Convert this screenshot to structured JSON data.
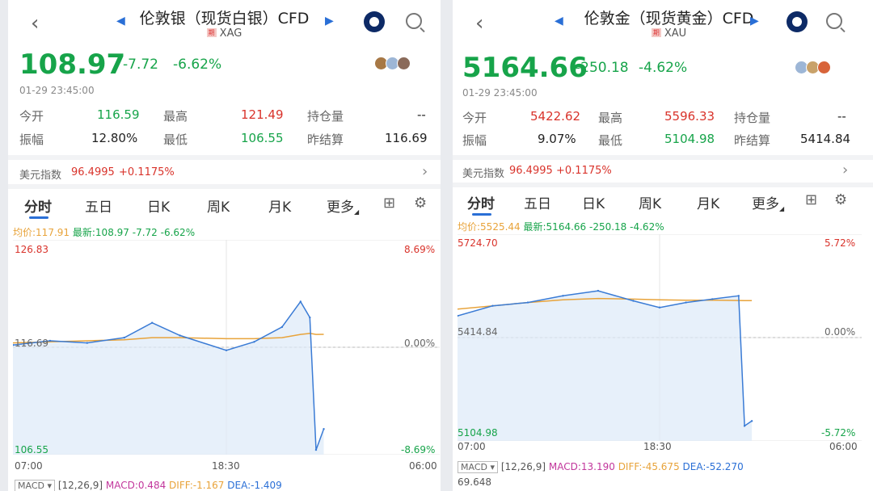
{
  "panels": [
    {
      "title": "伦敦银（现货白银）CFD",
      "badge": "期",
      "symbol": "XAG",
      "price": "108.97",
      "change": "-7.72",
      "change_pct": "-6.62%",
      "datetime": "01-29 23:45:00",
      "stats": {
        "open_label": "今开",
        "open": "116.59",
        "high_label": "最高",
        "high": "121.49",
        "oi_label": "持仓量",
        "oi": "--",
        "amp_label": "振幅",
        "amp": "12.80%",
        "low_label": "最低",
        "low": "106.55",
        "settle_label": "昨结算",
        "settle": "116.69"
      },
      "dxy_label": "美元指数",
      "dxy_value": "96.4995",
      "dxy_change": "+0.1175%",
      "tabs": [
        "分时",
        "五日",
        "日K",
        "周K",
        "月K",
        "更多"
      ],
      "legend": {
        "avg": "均价:117.91",
        "latest": "最新:108.97",
        "chg": "-7.72",
        "pct": "-6.62%"
      },
      "axis": {
        "top": "126.83",
        "mid": "116.69",
        "bottom": "106.55",
        "pct_top": "8.69%",
        "pct_mid": "0.00%",
        "pct_bottom": "-8.69%",
        "t_start": "07:00",
        "t_mid": "18:30",
        "t_end": "06:00"
      },
      "macd": {
        "label": "MACD",
        "params": "[12,26,9]",
        "macd": "MACD:0.484",
        "diff": "DIFF:-1.167",
        "dea": "DEA:-1.409"
      }
    },
    {
      "title": "伦敦金（现货黄金）CFD",
      "badge": "期",
      "symbol": "XAU",
      "price": "5164.66",
      "change": "-250.18",
      "change_pct": "-4.62%",
      "datetime": "01-29 23:45:00",
      "stats": {
        "open_label": "今开",
        "open": "5422.62",
        "high_label": "最高",
        "high": "5596.33",
        "oi_label": "持仓量",
        "oi": "--",
        "amp_label": "振幅",
        "amp": "9.07%",
        "low_label": "最低",
        "low": "5104.98",
        "settle_label": "昨结算",
        "settle": "5414.84"
      },
      "dxy_label": "美元指数",
      "dxy_value": "96.4995",
      "dxy_change": "+0.1175%",
      "tabs": [
        "分时",
        "五日",
        "日K",
        "周K",
        "月K",
        "更多"
      ],
      "legend": {
        "avg": "均价:5525.44",
        "latest": "最新:5164.66",
        "chg": "-250.18",
        "pct": "-4.62%"
      },
      "axis": {
        "top": "5724.70",
        "mid": "5414.84",
        "bottom": "5104.98",
        "pct_top": "5.72%",
        "pct_mid": "0.00%",
        "pct_bottom": "-5.72%",
        "t_start": "07:00",
        "t_mid": "18:30",
        "t_end": "06:00"
      },
      "macd": {
        "label": "MACD",
        "params": "[12,26,9]",
        "macd": "MACD:13.190",
        "diff": "DIFF:-45.675",
        "dea": "DEA:-52.270",
        "extra": "69.648"
      }
    }
  ],
  "colors": {
    "up": "#d9332b",
    "down": "#17a44a",
    "avg_line": "#e8a33a",
    "accent": "#2a6fd6",
    "price_line": "#3a7bd5",
    "fill": "#dde9f8"
  },
  "icons": [
    "back-icon",
    "prev-arrow-icon",
    "next-arrow-icon",
    "app-logo-icon",
    "search-icon",
    "chevron-right-icon",
    "grid-icon",
    "settings-icon"
  ],
  "chart_data": [
    {
      "type": "line",
      "symbol": "XAG",
      "x": [
        "07:00",
        "09:00",
        "11:00",
        "13:00",
        "14:30",
        "16:00",
        "18:30",
        "20:00",
        "21:30",
        "22:30",
        "23:00",
        "23:20",
        "23:45"
      ],
      "series": [
        {
          "values": [
            116.9,
            117.3,
            117.1,
            117.6,
            119.0,
            117.8,
            116.4,
            117.2,
            118.6,
            121.0,
            119.5,
            107.0,
            108.97
          ]
        },
        {
          "values": [
            117.1,
            117.2,
            117.3,
            117.4,
            117.6,
            117.6,
            117.5,
            117.5,
            117.6,
            117.9,
            118.0,
            117.9,
            117.91
          ]
        }
      ],
      "ylim": [
        106.55,
        126.83
      ],
      "reference": 116.69
    },
    {
      "type": "line",
      "symbol": "XAU",
      "x": [
        "07:00",
        "09:00",
        "11:00",
        "13:00",
        "15:00",
        "17:00",
        "18:30",
        "20:00",
        "21:30",
        "23:00",
        "23:20",
        "23:45"
      ],
      "series": [
        {
          "values": [
            5480,
            5510,
            5520,
            5540,
            5555,
            5525,
            5505,
            5520,
            5530,
            5540,
            5150,
            5164.66
          ]
        },
        {
          "values": [
            5500,
            5510,
            5520,
            5528,
            5532,
            5530,
            5528,
            5527,
            5527,
            5526,
            5525.5,
            5525.44
          ]
        }
      ],
      "ylim": [
        5104.98,
        5724.7
      ],
      "reference": 5414.84
    }
  ]
}
